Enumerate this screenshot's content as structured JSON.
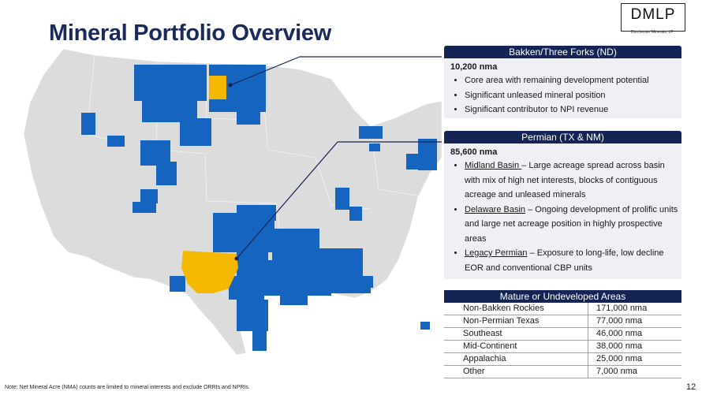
{
  "title": "Mineral Portfolio Overview",
  "logo": {
    "main": "DMLP",
    "sub": "Dorchester Minerals, LP"
  },
  "bakken": {
    "header": "Bakken/Three Forks (ND)",
    "nma": "10,200 nma",
    "bullets": [
      "Core area with remaining development potential",
      "Significant unleased mineral position",
      "Significant contributor to NPI revenue"
    ]
  },
  "permian": {
    "header": "Permian (TX & NM)",
    "nma": "85,600 nma",
    "bullets": [
      {
        "term": "Midland Basin ",
        "text": "– Large acreage spread across basin with mix of high net interests, blocks of contiguous acreage and unleased minerals"
      },
      {
        "term": "Delaware Basin",
        "text": " – Ongoing development of prolific units and large net acreage position in highly prospective areas"
      },
      {
        "term": "Legacy Permian",
        "text": " – Exposure to long-life, low decline EOR and conventional CBP units"
      }
    ]
  },
  "mature": {
    "header": "Mature or Undeveloped Areas",
    "rows": [
      {
        "area": "Non-Bakken Rockies",
        "value": "171,000  nma"
      },
      {
        "area": "Non-Permian Texas",
        "value": " 77,000  nma"
      },
      {
        "area": "Southeast",
        "value": " 46,000  nma"
      },
      {
        "area": "Mid-Continent",
        "value": " 38,000  nma"
      },
      {
        "area": "Appalachia",
        "value": " 25,000  nma"
      },
      {
        "area": "Other",
        "value": "   7,000  nma"
      }
    ]
  },
  "note": "Note: Net Mineral Acre (NMA) counts are limited to mineral interests and exclude ORRIs and NPRIs.",
  "page_number": "12",
  "colors": {
    "navy": "#142454",
    "holdings_blue": "#1565c0",
    "core_yellow": "#f5b800",
    "map_gray": "#dcdcdc"
  }
}
